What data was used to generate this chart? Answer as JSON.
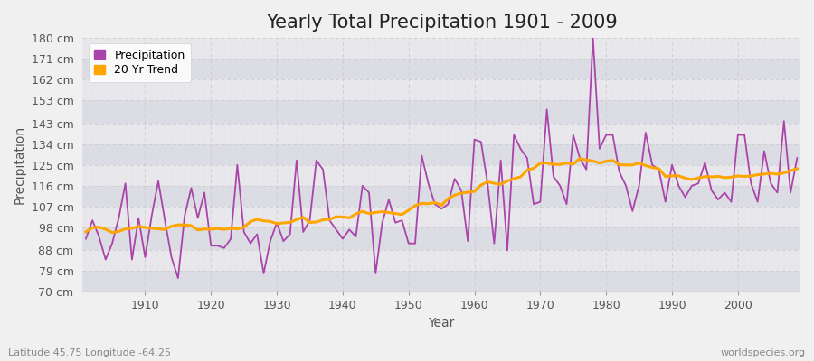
{
  "title": "Yearly Total Precipitation 1901 - 2009",
  "xlabel": "Year",
  "ylabel": "Precipitation",
  "subtitle": "Latitude 45.75 Longitude -64.25",
  "watermark": "worldspecies.org",
  "years": [
    1901,
    1902,
    1903,
    1904,
    1905,
    1906,
    1907,
    1908,
    1909,
    1910,
    1911,
    1912,
    1913,
    1914,
    1915,
    1916,
    1917,
    1918,
    1919,
    1920,
    1921,
    1922,
    1923,
    1924,
    1925,
    1926,
    1927,
    1928,
    1929,
    1930,
    1931,
    1932,
    1933,
    1934,
    1935,
    1936,
    1937,
    1938,
    1939,
    1940,
    1941,
    1942,
    1943,
    1944,
    1945,
    1946,
    1947,
    1948,
    1949,
    1950,
    1951,
    1952,
    1953,
    1954,
    1955,
    1956,
    1957,
    1958,
    1959,
    1960,
    1961,
    1962,
    1963,
    1964,
    1965,
    1966,
    1967,
    1968,
    1969,
    1970,
    1971,
    1972,
    1973,
    1974,
    1975,
    1976,
    1977,
    1978,
    1979,
    1980,
    1981,
    1982,
    1983,
    1984,
    1985,
    1986,
    1987,
    1988,
    1989,
    1990,
    1991,
    1992,
    1993,
    1994,
    1995,
    1996,
    1997,
    1998,
    1999,
    2000,
    2001,
    2002,
    2003,
    2004,
    2005,
    2006,
    2007,
    2008,
    2009
  ],
  "precip": [
    93,
    101,
    94,
    84,
    91,
    102,
    117,
    84,
    102,
    85,
    103,
    118,
    101,
    85,
    76,
    103,
    115,
    102,
    113,
    90,
    90,
    89,
    93,
    125,
    96,
    91,
    95,
    78,
    92,
    100,
    92,
    95,
    127,
    96,
    101,
    127,
    123,
    101,
    97,
    93,
    97,
    94,
    116,
    113,
    78,
    100,
    110,
    100,
    101,
    91,
    91,
    129,
    117,
    108,
    106,
    108,
    119,
    114,
    92,
    136,
    135,
    117,
    91,
    127,
    88,
    138,
    132,
    128,
    108,
    109,
    149,
    120,
    116,
    108,
    138,
    128,
    123,
    180,
    132,
    138,
    138,
    122,
    116,
    105,
    116,
    139,
    125,
    123,
    109,
    125,
    116,
    111,
    116,
    117,
    126,
    114,
    110,
    113,
    109,
    138,
    138,
    117,
    109,
    131,
    117,
    113,
    144,
    113,
    128
  ],
  "precip_color": "#AA44AA",
  "trend_color": "#FFA500",
  "fig_bg_color": "#F0F0F0",
  "plot_bg_color": "#E8E8EC",
  "alt_band_color": "#DCDCE4",
  "grid_color_h": "#CCCCCC",
  "grid_color_v": "#CCCCCC",
  "ylim": [
    70,
    180
  ],
  "yticks": [
    70,
    79,
    88,
    98,
    107,
    116,
    125,
    134,
    143,
    153,
    162,
    171,
    180
  ],
  "ytick_labels": [
    "70 cm",
    "79 cm",
    "88 cm",
    "98 cm",
    "107 cm",
    "116 cm",
    "125 cm",
    "134 cm",
    "143 cm",
    "153 cm",
    "162 cm",
    "171 cm",
    "180 cm"
  ],
  "xticks": [
    1910,
    1920,
    1930,
    1940,
    1950,
    1960,
    1970,
    1980,
    1990,
    2000
  ],
  "title_fontsize": 15,
  "axis_fontsize": 9,
  "legend_fontsize": 9,
  "precip_linewidth": 1.3,
  "trend_linewidth": 2.2,
  "trend_window": 20
}
